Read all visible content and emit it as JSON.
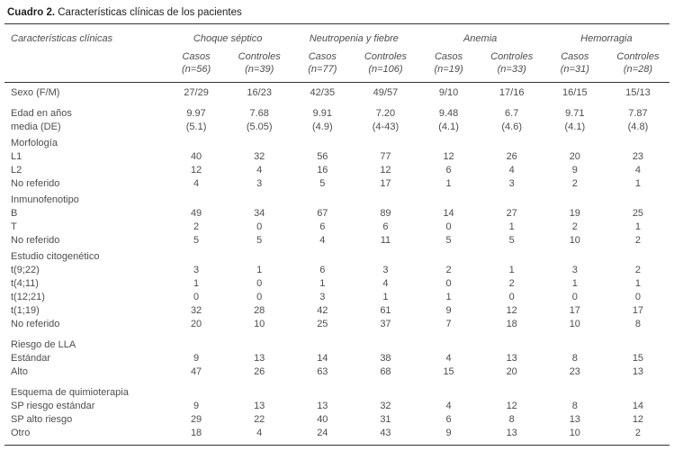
{
  "title": {
    "bold": "Cuadro 2.",
    "rest": " Características clínicas de los pacientes"
  },
  "colors": {
    "background": "#ffffff",
    "text": "#4d4d4d",
    "title_text": "#222222",
    "rule": "#333333"
  },
  "table": {
    "stub_header": "Características clínicas",
    "groups": [
      {
        "label": "Choque séptico",
        "subcolumns": [
          {
            "label": "Casos",
            "n": "(n=56)"
          },
          {
            "label": "Controles",
            "n": "(n=39)"
          }
        ]
      },
      {
        "label": "Neutropenia y fiebre",
        "subcolumns": [
          {
            "label": "Casos",
            "n": "(n=77)"
          },
          {
            "label": "Controles",
            "n": "(n=106)"
          }
        ]
      },
      {
        "label": "Anemia",
        "subcolumns": [
          {
            "label": "Casos",
            "n": "(n=19)"
          },
          {
            "label": "Controles",
            "n": "(n=33)"
          }
        ]
      },
      {
        "label": "Hemorragia",
        "subcolumns": [
          {
            "label": "Casos",
            "n": "(n=31)"
          },
          {
            "label": "Controles",
            "n": "(n=28)"
          }
        ]
      }
    ],
    "rows": [
      {
        "label": "Sexo (F/M)",
        "section": false,
        "gap": null,
        "values": [
          "27/29",
          "16/23",
          "42/35",
          "49/57",
          "9/10",
          "17/16",
          "16/15",
          "15/13"
        ]
      },
      {
        "label": "Edad en años",
        "section": false,
        "gap": "lg",
        "values": [
          "9.97",
          "7.68",
          "9.91",
          "7.20",
          "9.48",
          "6.7",
          "9.71",
          "7.87"
        ]
      },
      {
        "label": "media (DE)",
        "section": false,
        "gap": null,
        "values": [
          "(5.1)",
          "(5.05)",
          "(4.9)",
          "(4-43)",
          "(4.1)",
          "(4.6)",
          "(4.1)",
          "(4.8)"
        ]
      },
      {
        "label": "Morfología",
        "section": true,
        "gap": "sm",
        "values": []
      },
      {
        "label": "L1",
        "section": false,
        "gap": null,
        "values": [
          "40",
          "32",
          "56",
          "77",
          "12",
          "26",
          "20",
          "23"
        ]
      },
      {
        "label": "L2",
        "section": false,
        "gap": null,
        "values": [
          "12",
          "4",
          "16",
          "12",
          "6",
          "4",
          "9",
          "4"
        ]
      },
      {
        "label": "No referido",
        "section": false,
        "gap": null,
        "values": [
          "4",
          "3",
          "5",
          "17",
          "1",
          "3",
          "2",
          "1"
        ]
      },
      {
        "label": "Inmunofenotipo",
        "section": true,
        "gap": "sm",
        "values": []
      },
      {
        "label": "B",
        "section": false,
        "gap": null,
        "values": [
          "49",
          "34",
          "67",
          "89",
          "14",
          "27",
          "19",
          "25"
        ]
      },
      {
        "label": "T",
        "section": false,
        "gap": null,
        "values": [
          "2",
          "0",
          "6",
          "6",
          "0",
          "1",
          "2",
          "1"
        ]
      },
      {
        "label": "No referido",
        "section": false,
        "gap": null,
        "values": [
          "5",
          "5",
          "4",
          "11",
          "5",
          "5",
          "10",
          "2"
        ]
      },
      {
        "label": "Estudio citogenético",
        "section": true,
        "gap": "sm",
        "values": []
      },
      {
        "label": "t(9;22)",
        "section": false,
        "gap": null,
        "values": [
          "3",
          "1",
          "6",
          "3",
          "2",
          "1",
          "3",
          "2"
        ]
      },
      {
        "label": "t(4;11)",
        "section": false,
        "gap": null,
        "values": [
          "1",
          "0",
          "1",
          "4",
          "0",
          "2",
          "1",
          "1"
        ]
      },
      {
        "label": "t(12;21)",
        "section": false,
        "gap": null,
        "values": [
          "0",
          "0",
          "3",
          "1",
          "1",
          "0",
          "0",
          "0"
        ]
      },
      {
        "label": "t(1;19)",
        "section": false,
        "gap": null,
        "values": [
          "32",
          "28",
          "42",
          "61",
          "9",
          "12",
          "17",
          "17"
        ]
      },
      {
        "label": "No referido",
        "section": false,
        "gap": null,
        "values": [
          "20",
          "10",
          "25",
          "37",
          "7",
          "18",
          "10",
          "8"
        ]
      },
      {
        "label": "Riesgo de LLA",
        "section": true,
        "gap": "lg",
        "values": []
      },
      {
        "label": "Estándar",
        "section": false,
        "gap": null,
        "values": [
          "9",
          "13",
          "14",
          "38",
          "4",
          "13",
          "8",
          "15"
        ]
      },
      {
        "label": "Alto",
        "section": false,
        "gap": null,
        "values": [
          "47",
          "26",
          "63",
          "68",
          "15",
          "20",
          "23",
          "13"
        ]
      },
      {
        "label": "Esquema de quimioterapia",
        "section": true,
        "gap": "lg",
        "values": []
      },
      {
        "label": "SP riesgo estándar",
        "section": false,
        "gap": null,
        "values": [
          "9",
          "13",
          "13",
          "32",
          "4",
          "12",
          "8",
          "14"
        ]
      },
      {
        "label": "SP alto riesgo",
        "section": false,
        "gap": null,
        "values": [
          "29",
          "22",
          "40",
          "31",
          "6",
          "8",
          "13",
          "12"
        ]
      },
      {
        "label": "Otro",
        "section": false,
        "gap": null,
        "values": [
          "18",
          "4",
          "24",
          "43",
          "9",
          "13",
          "10",
          "2"
        ]
      }
    ]
  }
}
